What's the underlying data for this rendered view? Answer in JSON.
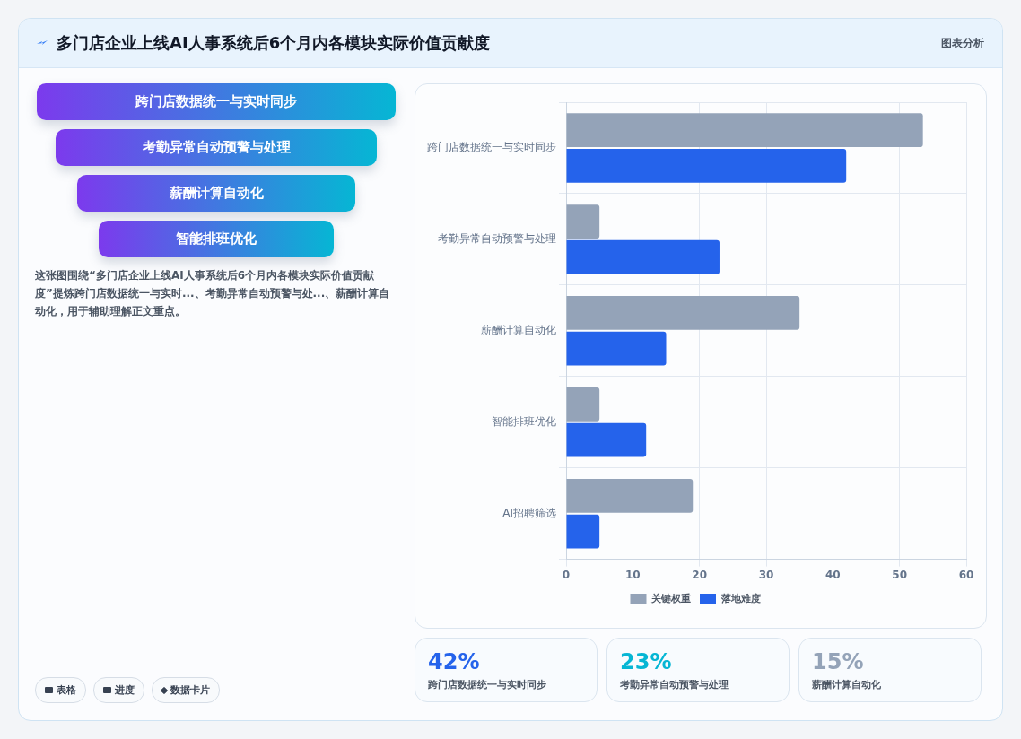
{
  "chart_data": [
    {
      "type": "other",
      "title": "多门店企业上线AI人事系统后6个月内各模块实际价值贡献度",
      "annotations": [
        "图表分析",
        "跨门店数据统一与实时同步",
        "考勤异常自动预警与处理",
        "薪酬计算自动化",
        "智能排班优化",
        "这张图围绕“多门店企业上线AI人事系统后6个月内各模块实际价值贡献度”提炼跨门店数据统一与实时...、考勤异常自动预警与处...、薪酬计算自动化，用于辅助理解正文重点。",
        "表格",
        "进度",
        "数据卡片"
      ]
    },
    {
      "type": "bar",
      "orientation": "horizontal",
      "categories": [
        "跨门店数据统一与实时同步",
        "考勤异常自动预警与处理",
        "薪酬计算自动化",
        "智能排班优化",
        "AI招聘筛选"
      ],
      "series": [
        {
          "name": "关键权重",
          "color": "#94a3b8",
          "values": [
            53.5,
            5,
            35,
            5,
            19
          ]
        },
        {
          "name": "落地难度",
          "color": "#2563eb",
          "values": [
            42,
            23,
            15,
            12,
            5
          ]
        }
      ],
      "xlim": [
        0,
        60
      ],
      "xticks": [
        0,
        10,
        20,
        30,
        40,
        50,
        60
      ],
      "grid": true,
      "legend": "bottom"
    },
    {
      "type": "other",
      "annotations": [
        "42%",
        "跨门店数据统一与实时同步",
        "23%",
        "考勤异常自动预警与处理",
        "15%",
        "薪酬计算自动化"
      ]
    }
  ]
}
